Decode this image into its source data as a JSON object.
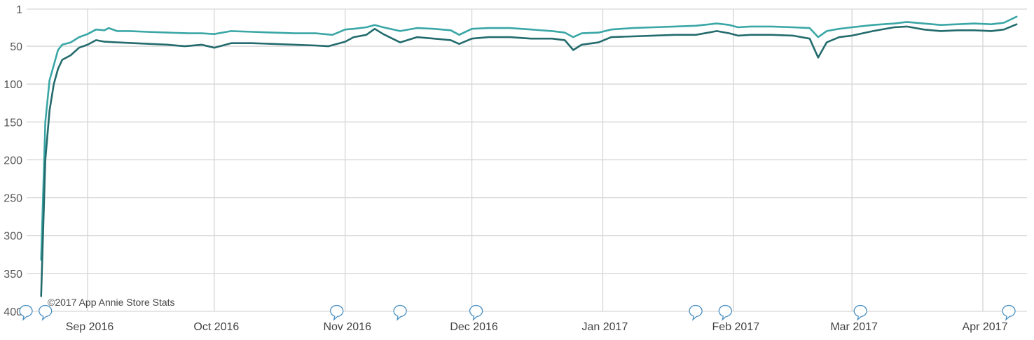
{
  "chart_data": {
    "type": "line",
    "ylim": [
      1,
      400
    ],
    "y_reversed": true,
    "y_ticks": [
      "1",
      "50",
      "100",
      "150",
      "200",
      "250",
      "300",
      "350",
      "400"
    ],
    "y_tick_values": [
      1,
      50,
      100,
      150,
      200,
      250,
      300,
      350,
      400
    ],
    "x_range": [
      "2016-08-20",
      "2017-04-10"
    ],
    "x_ticks": [
      {
        "label": "Sep 2016",
        "date": "2016-09-01"
      },
      {
        "label": "Oct 2016",
        "date": "2016-10-01"
      },
      {
        "label": "Nov 2016",
        "date": "2016-11-01"
      },
      {
        "label": "Dec 2016",
        "date": "2016-12-01"
      },
      {
        "label": "Jan 2017",
        "date": "2017-01-01"
      },
      {
        "label": "Feb 2017",
        "date": "2017-02-01"
      },
      {
        "label": "Mar 2017",
        "date": "2017-03-01"
      },
      {
        "label": "Apr 2017",
        "date": "2017-04-01"
      }
    ],
    "grid": true,
    "legend": "none",
    "series": [
      {
        "color": "#3aa6a6",
        "points": [
          [
            "2016-08-21",
            332
          ],
          [
            "2016-08-22",
            150
          ],
          [
            "2016-08-23",
            95
          ],
          [
            "2016-08-24",
            75
          ],
          [
            "2016-08-25",
            55
          ],
          [
            "2016-08-26",
            48
          ],
          [
            "2016-08-28",
            45
          ],
          [
            "2016-08-30",
            38
          ],
          [
            "2016-09-01",
            34
          ],
          [
            "2016-09-03",
            28
          ],
          [
            "2016-09-05",
            29
          ],
          [
            "2016-09-06",
            26
          ],
          [
            "2016-09-08",
            30
          ],
          [
            "2016-09-11",
            30
          ],
          [
            "2016-09-15",
            31
          ],
          [
            "2016-09-20",
            32
          ],
          [
            "2016-09-25",
            33
          ],
          [
            "2016-09-28",
            33
          ],
          [
            "2016-10-01",
            34
          ],
          [
            "2016-10-05",
            30
          ],
          [
            "2016-10-10",
            31
          ],
          [
            "2016-10-15",
            32
          ],
          [
            "2016-10-20",
            33
          ],
          [
            "2016-10-25",
            33
          ],
          [
            "2016-10-29",
            35
          ],
          [
            "2016-11-01",
            28
          ],
          [
            "2016-11-03",
            27
          ],
          [
            "2016-11-06",
            25
          ],
          [
            "2016-11-08",
            22
          ],
          [
            "2016-11-10",
            25
          ],
          [
            "2016-11-14",
            30
          ],
          [
            "2016-11-18",
            26
          ],
          [
            "2016-11-22",
            27
          ],
          [
            "2016-11-26",
            29
          ],
          [
            "2016-11-28",
            35
          ],
          [
            "2016-12-01",
            27
          ],
          [
            "2016-12-05",
            26
          ],
          [
            "2016-12-10",
            26
          ],
          [
            "2016-12-15",
            28
          ],
          [
            "2016-12-20",
            30
          ],
          [
            "2016-12-23",
            32
          ],
          [
            "2016-12-25",
            38
          ],
          [
            "2016-12-27",
            33
          ],
          [
            "2016-12-31",
            32
          ],
          [
            "2017-01-03",
            28
          ],
          [
            "2017-01-08",
            26
          ],
          [
            "2017-01-13",
            25
          ],
          [
            "2017-01-18",
            24
          ],
          [
            "2017-01-23",
            23
          ],
          [
            "2017-01-28",
            20
          ],
          [
            "2017-01-31",
            22
          ],
          [
            "2017-02-02",
            25
          ],
          [
            "2017-02-05",
            24
          ],
          [
            "2017-02-10",
            24
          ],
          [
            "2017-02-15",
            25
          ],
          [
            "2017-02-19",
            26
          ],
          [
            "2017-02-21",
            38
          ],
          [
            "2017-02-23",
            30
          ],
          [
            "2017-02-26",
            27
          ],
          [
            "2017-03-01",
            25
          ],
          [
            "2017-03-06",
            22
          ],
          [
            "2017-03-11",
            20
          ],
          [
            "2017-03-14",
            18
          ],
          [
            "2017-03-18",
            20
          ],
          [
            "2017-03-22",
            22
          ],
          [
            "2017-03-26",
            21
          ],
          [
            "2017-03-30",
            20
          ],
          [
            "2017-04-03",
            21
          ],
          [
            "2017-04-06",
            19
          ],
          [
            "2017-04-09",
            11
          ]
        ]
      },
      {
        "color": "#236b6d",
        "points": [
          [
            "2016-08-21",
            380
          ],
          [
            "2016-08-22",
            200
          ],
          [
            "2016-08-23",
            135
          ],
          [
            "2016-08-24",
            100
          ],
          [
            "2016-08-25",
            80
          ],
          [
            "2016-08-26",
            68
          ],
          [
            "2016-08-28",
            62
          ],
          [
            "2016-08-30",
            52
          ],
          [
            "2016-09-01",
            48
          ],
          [
            "2016-09-03",
            42
          ],
          [
            "2016-09-05",
            44
          ],
          [
            "2016-09-08",
            45
          ],
          [
            "2016-09-12",
            46
          ],
          [
            "2016-09-16",
            47
          ],
          [
            "2016-09-20",
            48
          ],
          [
            "2016-09-24",
            50
          ],
          [
            "2016-09-28",
            48
          ],
          [
            "2016-10-01",
            52
          ],
          [
            "2016-10-05",
            46
          ],
          [
            "2016-10-10",
            46
          ],
          [
            "2016-10-15",
            47
          ],
          [
            "2016-10-20",
            48
          ],
          [
            "2016-10-25",
            49
          ],
          [
            "2016-10-28",
            50
          ],
          [
            "2016-11-01",
            44
          ],
          [
            "2016-11-03",
            38
          ],
          [
            "2016-11-06",
            35
          ],
          [
            "2016-11-08",
            27
          ],
          [
            "2016-11-10",
            34
          ],
          [
            "2016-11-14",
            45
          ],
          [
            "2016-11-18",
            38
          ],
          [
            "2016-11-22",
            40
          ],
          [
            "2016-11-26",
            42
          ],
          [
            "2016-11-28",
            47
          ],
          [
            "2016-12-01",
            40
          ],
          [
            "2016-12-05",
            38
          ],
          [
            "2016-12-10",
            38
          ],
          [
            "2016-12-15",
            40
          ],
          [
            "2016-12-20",
            40
          ],
          [
            "2016-12-23",
            42
          ],
          [
            "2016-12-25",
            55
          ],
          [
            "2016-12-27",
            48
          ],
          [
            "2016-12-31",
            45
          ],
          [
            "2017-01-03",
            38
          ],
          [
            "2017-01-08",
            37
          ],
          [
            "2017-01-13",
            36
          ],
          [
            "2017-01-18",
            35
          ],
          [
            "2017-01-23",
            35
          ],
          [
            "2017-01-28",
            30
          ],
          [
            "2017-01-31",
            33
          ],
          [
            "2017-02-02",
            36
          ],
          [
            "2017-02-05",
            35
          ],
          [
            "2017-02-10",
            35
          ],
          [
            "2017-02-15",
            36
          ],
          [
            "2017-02-19",
            40
          ],
          [
            "2017-02-21",
            65
          ],
          [
            "2017-02-23",
            45
          ],
          [
            "2017-02-26",
            38
          ],
          [
            "2017-03-01",
            36
          ],
          [
            "2017-03-06",
            30
          ],
          [
            "2017-03-11",
            25
          ],
          [
            "2017-03-14",
            24
          ],
          [
            "2017-03-18",
            28
          ],
          [
            "2017-03-22",
            30
          ],
          [
            "2017-03-26",
            29
          ],
          [
            "2017-03-30",
            29
          ],
          [
            "2017-04-03",
            30
          ],
          [
            "2017-04-06",
            28
          ],
          [
            "2017-04-09",
            21
          ]
        ]
      }
    ],
    "annotation_markers": [
      "2016-08-14",
      "2016-08-22",
      "2016-10-30",
      "2016-11-14",
      "2016-12-02",
      "2017-01-23",
      "2017-01-30",
      "2017-03-03",
      "2017-04-08"
    ],
    "copyright": "©2017 App Annie Store Stats"
  }
}
